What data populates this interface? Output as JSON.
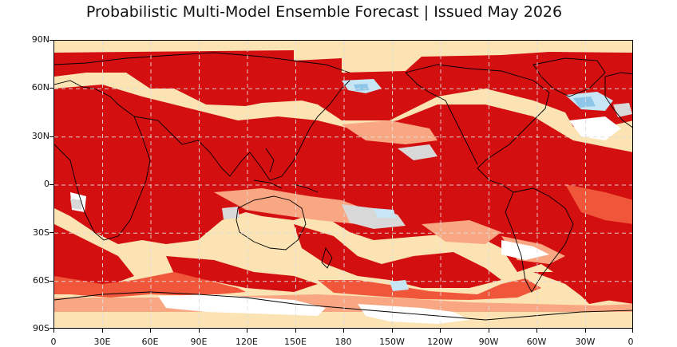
{
  "title": "Probabilistic Multi-Model Ensemble Forecast | Issued May 2026",
  "map": {
    "lat_ticks": [
      "90N",
      "60N",
      "30N",
      "0",
      "30S",
      "60S",
      "90S"
    ],
    "lon_ticks": [
      "0",
      "30E",
      "60E",
      "90E",
      "120E",
      "150E",
      "180",
      "150W",
      "120W",
      "90W",
      "60W",
      "30W",
      "0"
    ],
    "colors": {
      "strong_warm": "#d40f0f",
      "moderate_warm": "#f0563a",
      "weak_warm": "#f9a783",
      "light_warm": "#fbe3b4",
      "neutral": "#ffffff",
      "near_normal_grey": "#d8d8d8",
      "weak_cool": "#c6e6f5",
      "moderate_cool": "#8ec6ea",
      "coastline": "#000000",
      "grid": "#dddddd"
    }
  }
}
